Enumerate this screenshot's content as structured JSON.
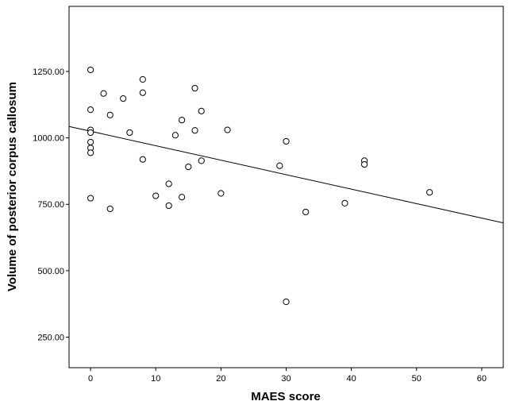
{
  "chart_data": {
    "type": "scatter",
    "title": "",
    "xlabel": "MAES score",
    "ylabel": "Volume of posterior corpus callosum",
    "xlim": [
      -3.3,
      63.3
    ],
    "ylim": [
      135,
      1495
    ],
    "x_ticks": [
      0,
      10,
      20,
      30,
      40,
      50,
      60
    ],
    "x_tick_labels": [
      "0",
      "10",
      "20",
      "30",
      "40",
      "50",
      "60"
    ],
    "y_ticks": [
      250,
      500,
      750,
      1000,
      1250
    ],
    "y_tick_labels": [
      "250.00",
      "500.00",
      "750.00",
      "1000.00",
      "1250.00"
    ],
    "grid": false,
    "legend": "none",
    "points": [
      {
        "x": 0,
        "y": 1256
      },
      {
        "x": 0,
        "y": 1106
      },
      {
        "x": 0,
        "y": 1030
      },
      {
        "x": 0,
        "y": 1020
      },
      {
        "x": 0,
        "y": 984
      },
      {
        "x": 0,
        "y": 962
      },
      {
        "x": 0,
        "y": 944
      },
      {
        "x": 0,
        "y": 773
      },
      {
        "x": 2,
        "y": 1167
      },
      {
        "x": 3,
        "y": 1086
      },
      {
        "x": 3,
        "y": 733
      },
      {
        "x": 5,
        "y": 1148
      },
      {
        "x": 6,
        "y": 1020
      },
      {
        "x": 8,
        "y": 1220
      },
      {
        "x": 8,
        "y": 1170
      },
      {
        "x": 8,
        "y": 919
      },
      {
        "x": 10,
        "y": 782
      },
      {
        "x": 12,
        "y": 827
      },
      {
        "x": 12,
        "y": 745
      },
      {
        "x": 13,
        "y": 1010
      },
      {
        "x": 14,
        "y": 1067
      },
      {
        "x": 14,
        "y": 777
      },
      {
        "x": 15,
        "y": 891
      },
      {
        "x": 16,
        "y": 1187
      },
      {
        "x": 16,
        "y": 1028
      },
      {
        "x": 17,
        "y": 1101
      },
      {
        "x": 17,
        "y": 914
      },
      {
        "x": 20,
        "y": 791
      },
      {
        "x": 21,
        "y": 1030
      },
      {
        "x": 29,
        "y": 895
      },
      {
        "x": 30,
        "y": 987
      },
      {
        "x": 30,
        "y": 383
      },
      {
        "x": 33,
        "y": 721
      },
      {
        "x": 39,
        "y": 754
      },
      {
        "x": 42,
        "y": 914
      },
      {
        "x": 42,
        "y": 900
      },
      {
        "x": 52,
        "y": 795
      }
    ],
    "fit_line": {
      "x": [
        -3.3,
        63.3
      ],
      "y": [
        1043,
        680
      ]
    },
    "colors": {
      "marker_stroke": "#000000",
      "marker_fill": "#ffffff",
      "line": "#000000",
      "axis": "#000000"
    }
  }
}
